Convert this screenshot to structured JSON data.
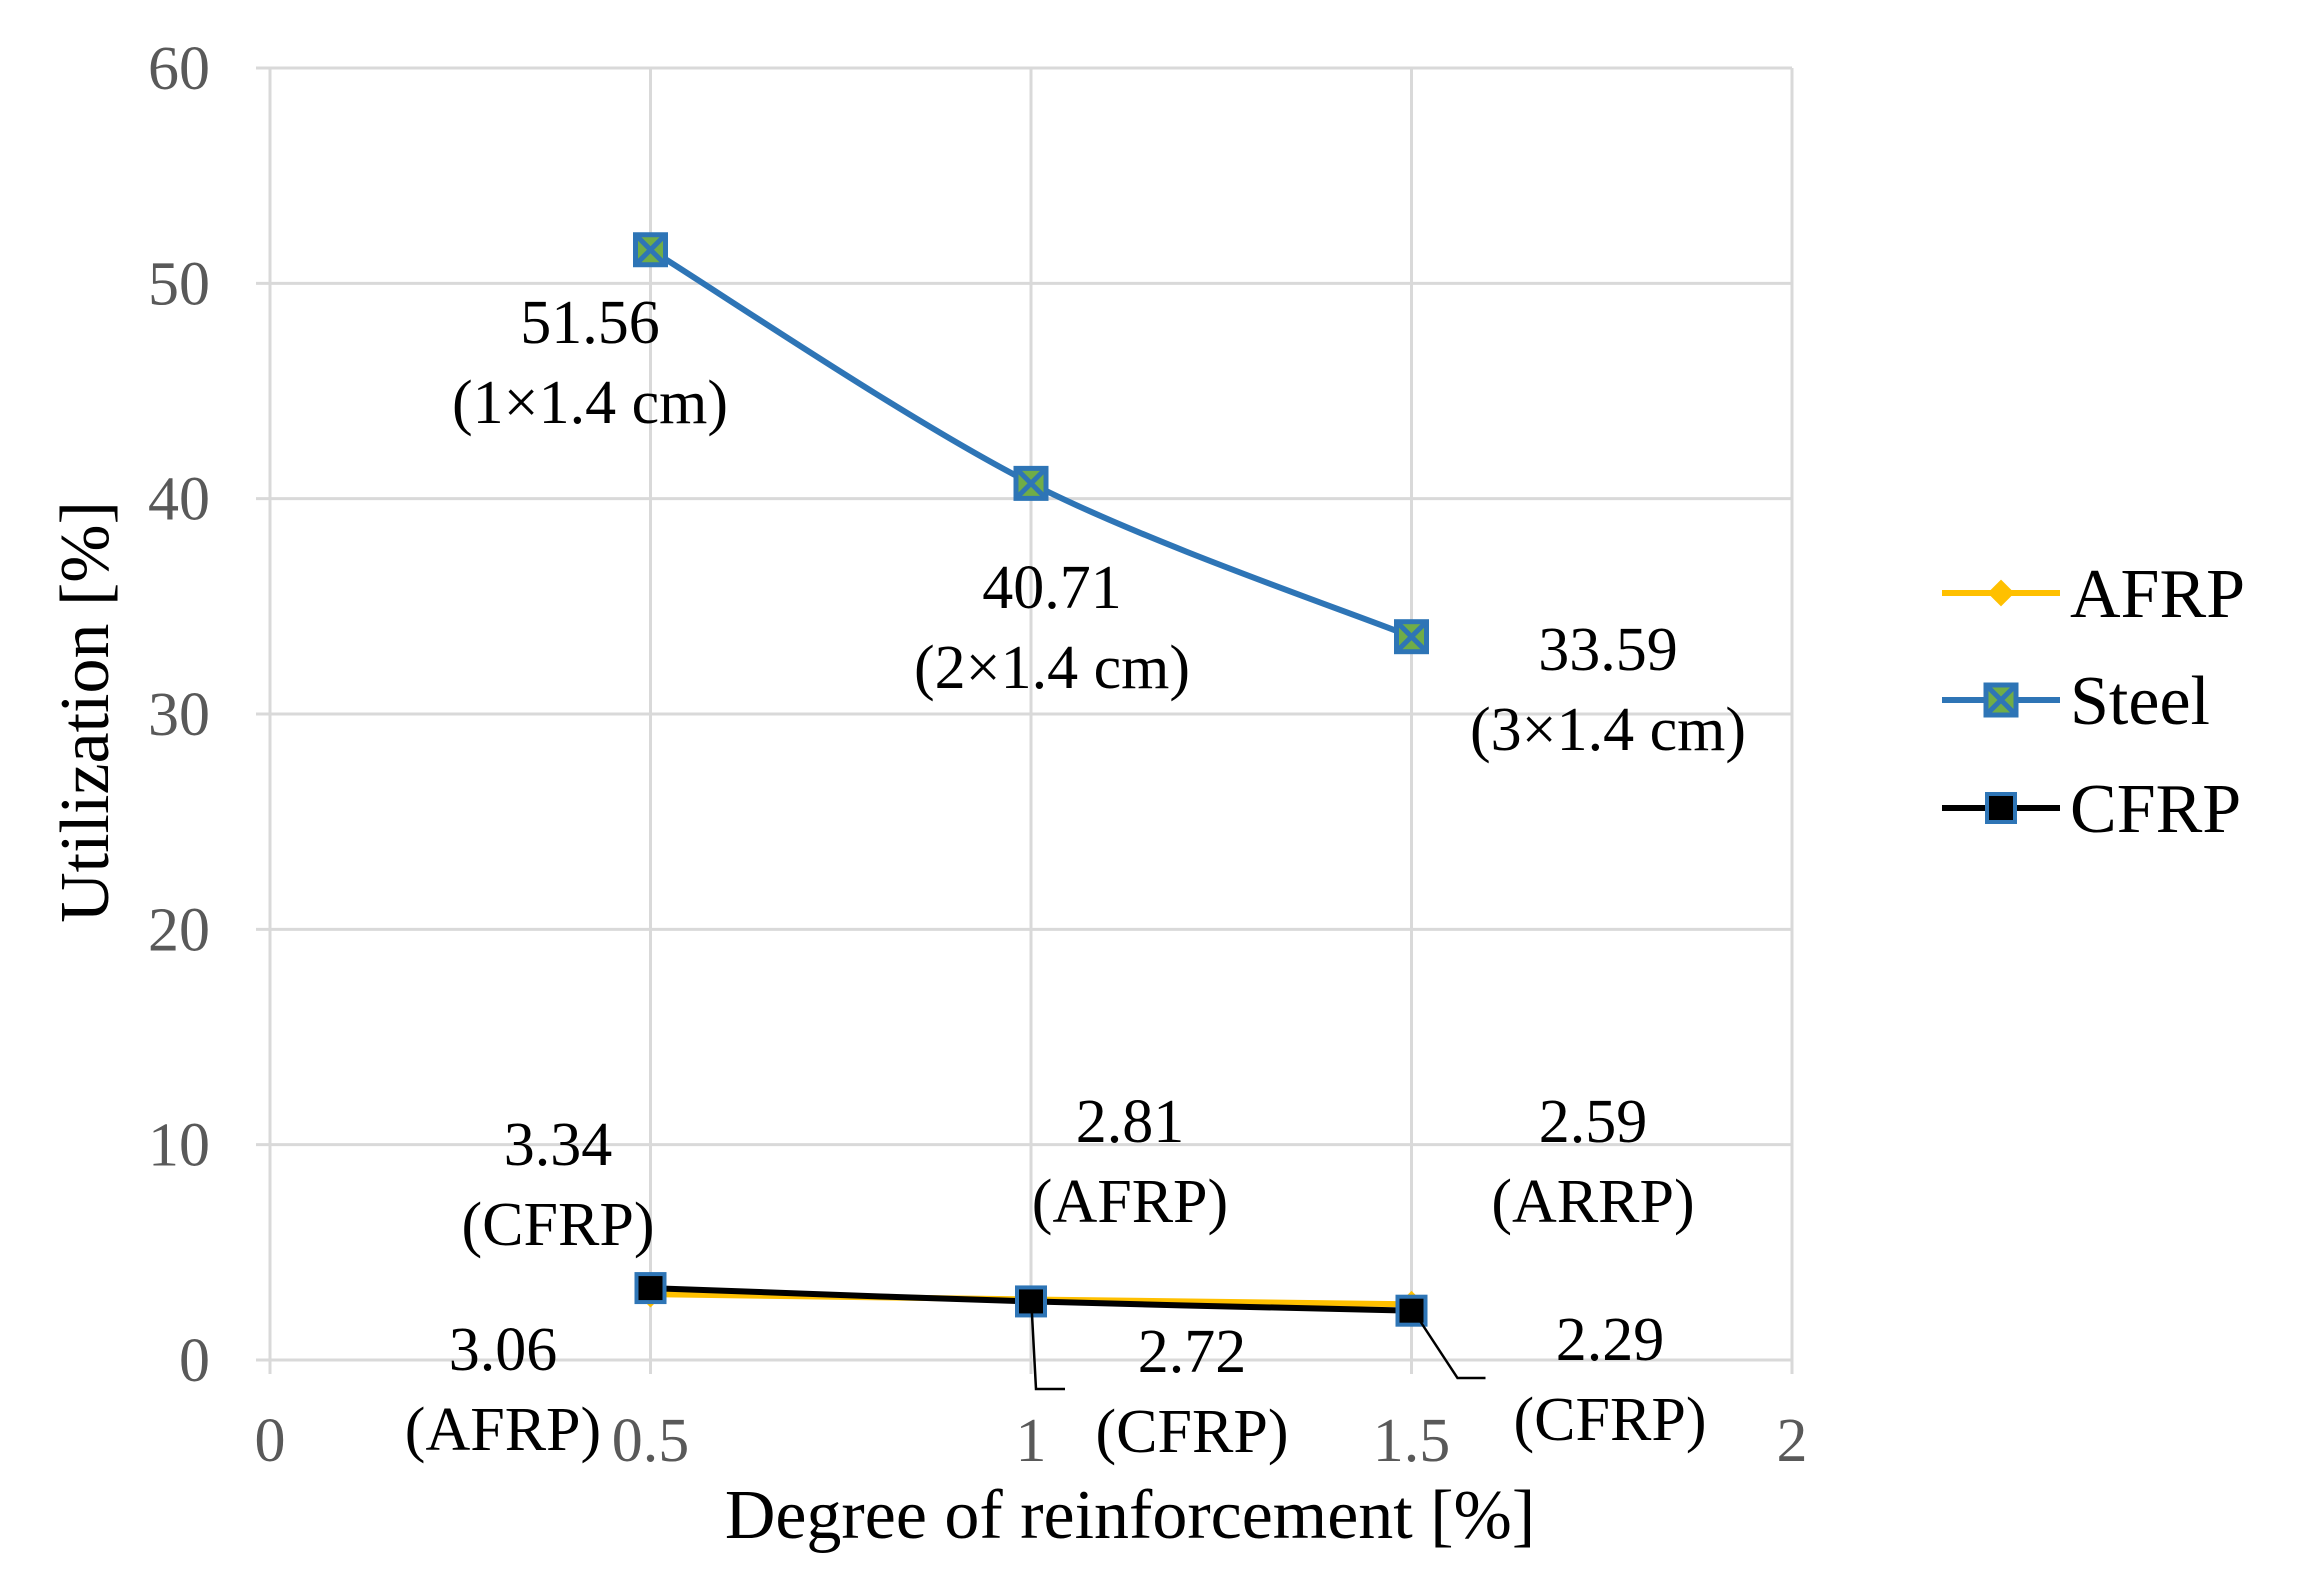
{
  "chart_data": {
    "type": "line",
    "title": "",
    "xlabel": "Degree of reinforcement [%]",
    "ylabel": "Utilization [%]",
    "xlim": [
      0,
      2
    ],
    "ylim": [
      0,
      60
    ],
    "x_ticks": [
      "0",
      "0.5",
      "1",
      "1.5",
      "2"
    ],
    "y_ticks": [
      "0",
      "10",
      "20",
      "30",
      "40",
      "50",
      "60"
    ],
    "grid": true,
    "legend_position": "right",
    "series": [
      {
        "name": "AFRP",
        "color": "#FFC000",
        "marker": "diamond",
        "x": [
          0.5,
          1.0,
          1.5
        ],
        "values": [
          3.06,
          2.81,
          2.59
        ]
      },
      {
        "name": "Steel",
        "color": "#2E75B6",
        "marker": "x-square",
        "x": [
          0.5,
          1.0,
          1.5
        ],
        "values": [
          51.56,
          40.71,
          33.59
        ]
      },
      {
        "name": "CFRP",
        "color": "#000000",
        "marker": "square",
        "x": [
          0.5,
          1.0,
          1.5
        ],
        "values": [
          3.34,
          2.72,
          2.29
        ]
      }
    ],
    "annotations": [
      {
        "id": "steel-0",
        "lines": [
          "51.56",
          "(1×1.4 cm)"
        ]
      },
      {
        "id": "steel-1",
        "lines": [
          "40.71",
          "(2×1.4 cm)"
        ]
      },
      {
        "id": "steel-2",
        "lines": [
          "33.59",
          "(3×1.4 cm)"
        ]
      },
      {
        "id": "cfrp-0",
        "lines": [
          "3.34",
          "(CFRP)"
        ]
      },
      {
        "id": "afrp-1",
        "lines": [
          "2.81",
          "(AFRP)"
        ]
      },
      {
        "id": "afrp-2",
        "lines": [
          "2.59",
          "(ARRP)"
        ]
      },
      {
        "id": "afrp-0",
        "lines": [
          "3.06",
          "(AFRP)"
        ]
      },
      {
        "id": "cfrp-1",
        "lines": [
          "2.72",
          "(CFRP)"
        ]
      },
      {
        "id": "cfrp-2",
        "lines": [
          "2.29",
          "(CFRP)"
        ]
      }
    ]
  }
}
